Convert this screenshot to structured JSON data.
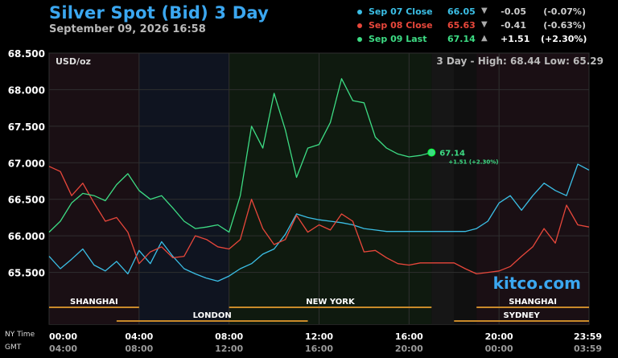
{
  "header": {
    "title": "Silver Spot (Bid) 3 Day",
    "timestamp": "September 09, 2026 16:58"
  },
  "legend": [
    {
      "name": "Sep 07 Close",
      "value": "66.05",
      "arrow": "▼",
      "change": "-0.05",
      "pct": "(-0.07%)",
      "color": "#3bbfe6",
      "text_color": "#3bbfe6",
      "chg_color": "#cfcfcf"
    },
    {
      "name": "Sep 08 Close",
      "value": "65.63",
      "arrow": "▼",
      "change": "-0.41",
      "pct": "(-0.63%)",
      "color": "#e8473b",
      "text_color": "#e8473b",
      "chg_color": "#cfcfcf"
    },
    {
      "name": "Sep 09 Last",
      "value": "67.14",
      "arrow": "▲",
      "change": "+1.51",
      "pct": "(+2.30%)",
      "color": "#3ddc84",
      "text_color": "#3ddc84",
      "chg_color": "#ffffff"
    }
  ],
  "footer": {
    "ny_label": "NY Time",
    "gmt_label": "GMT"
  },
  "chart_data": {
    "type": "line",
    "unit_label": "USD/oz",
    "summary": "3 Day - High: 68.44  Low: 65.29",
    "y_ticks": [
      "68.500",
      "68.000",
      "67.500",
      "67.000",
      "66.500",
      "66.000",
      "65.500"
    ],
    "ylim": [
      65.0,
      68.5
    ],
    "x_ticks_ny": [
      "00:00",
      "04:00",
      "08:00",
      "12:00",
      "16:00",
      "20:00",
      "23:59"
    ],
    "x_ticks_gmt": [
      "04:00",
      "08:00",
      "12:00",
      "16:00",
      "20:00",
      "00:00",
      "03:59"
    ],
    "xlim": [
      0,
      24
    ],
    "last_point": {
      "x": 17.0,
      "y": 67.14,
      "label": "67.14",
      "sublabel": "+1.51 (+2.30%)"
    },
    "sessions": [
      {
        "name": "SHANGHAI",
        "start": 0,
        "end": 4
      },
      {
        "name": "LONDON",
        "start": 3,
        "end": 11.5
      },
      {
        "name": "NEW YORK",
        "start": 8,
        "end": 17
      },
      {
        "name": "SHANGHAI",
        "start": 19,
        "end": 24
      },
      {
        "name": "SYDNEY",
        "start": 18,
        "end": 24
      }
    ],
    "series": [
      {
        "name": "Sep 07 Close",
        "color": "#3bbfe6",
        "x": [
          0,
          0.5,
          1,
          1.5,
          2,
          2.5,
          3,
          3.5,
          4,
          4.5,
          5,
          5.5,
          6,
          6.5,
          7,
          7.5,
          8,
          8.5,
          9,
          9.5,
          10,
          10.5,
          11,
          11.5,
          12,
          12.5,
          13,
          13.5,
          14,
          14.5,
          15,
          15.5,
          16,
          16.5,
          17,
          17.5,
          18,
          18.5,
          19,
          19.5,
          20,
          20.5,
          21,
          21.5,
          22,
          22.5,
          23,
          23.5,
          24
        ],
        "y": [
          65.72,
          65.55,
          65.68,
          65.82,
          65.6,
          65.52,
          65.65,
          65.48,
          65.8,
          65.62,
          65.92,
          65.72,
          65.55,
          65.48,
          65.42,
          65.38,
          65.45,
          65.55,
          65.62,
          65.75,
          65.82,
          66.02,
          66.3,
          66.25,
          66.22,
          66.2,
          66.18,
          66.15,
          66.1,
          66.08,
          66.06,
          66.06,
          66.06,
          66.06,
          66.06,
          66.06,
          66.06,
          66.06,
          66.1,
          66.2,
          66.45,
          66.55,
          66.35,
          66.55,
          66.72,
          66.62,
          66.55,
          66.98,
          66.9
        ]
      },
      {
        "name": "Sep 08 Close",
        "color": "#e8473b",
        "x": [
          0,
          0.5,
          1,
          1.5,
          2,
          2.5,
          3,
          3.5,
          4,
          4.5,
          5,
          5.5,
          6,
          6.5,
          7,
          7.5,
          8,
          8.5,
          9,
          9.5,
          10,
          10.5,
          11,
          11.5,
          12,
          12.5,
          13,
          13.5,
          14,
          14.5,
          15,
          15.5,
          16,
          16.5,
          17,
          17.5,
          18,
          18.5,
          19,
          19.5,
          20,
          20.5,
          21,
          21.5,
          22,
          22.5,
          23,
          23.5,
          24
        ],
        "y": [
          66.95,
          66.88,
          66.55,
          66.72,
          66.45,
          66.2,
          66.25,
          66.05,
          65.62,
          65.78,
          65.85,
          65.7,
          65.72,
          66.0,
          65.95,
          65.85,
          65.82,
          65.95,
          66.5,
          66.1,
          65.88,
          65.95,
          66.28,
          66.05,
          66.15,
          66.08,
          66.3,
          66.2,
          65.78,
          65.8,
          65.7,
          65.62,
          65.6,
          65.63,
          65.63,
          65.63,
          65.63,
          65.55,
          65.48,
          65.5,
          65.52,
          65.58,
          65.72,
          65.85,
          66.1,
          65.9,
          66.42,
          66.15,
          66.12
        ]
      },
      {
        "name": "Sep 09 Last",
        "color": "#3ddc84",
        "x": [
          0,
          0.5,
          1,
          1.5,
          2,
          2.5,
          3,
          3.5,
          4,
          4.5,
          5,
          5.5,
          6,
          6.5,
          7,
          7.5,
          8,
          8.5,
          9,
          9.5,
          10,
          10.5,
          11,
          11.5,
          12,
          12.5,
          13,
          13.5,
          14,
          14.5,
          15,
          15.5,
          16,
          16.5,
          17
        ],
        "y": [
          66.05,
          66.2,
          66.45,
          66.58,
          66.55,
          66.48,
          66.7,
          66.85,
          66.62,
          66.5,
          66.55,
          66.38,
          66.2,
          66.1,
          66.12,
          66.15,
          66.05,
          66.55,
          67.5,
          67.2,
          67.95,
          67.45,
          66.8,
          67.2,
          67.25,
          67.55,
          68.15,
          67.85,
          67.82,
          67.35,
          67.2,
          67.12,
          67.08,
          67.1,
          67.14
        ]
      }
    ]
  },
  "watermark": "kitco.com"
}
